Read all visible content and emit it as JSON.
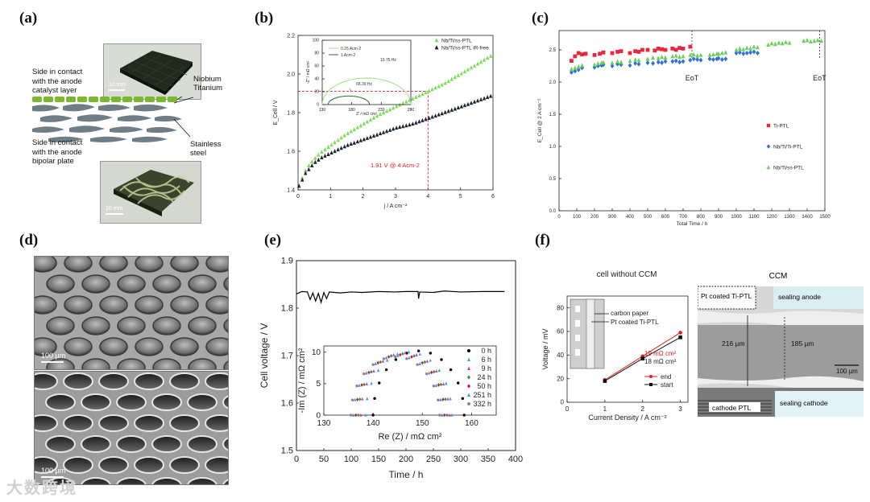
{
  "panels": {
    "a": {
      "label": "(a)",
      "callouts": [
        "Side in contact",
        "with the anode",
        "catalyst layer",
        "Side in contact",
        "with the anode",
        "bipolar plate"
      ],
      "materials": [
        "Niobium",
        "Titanium",
        "Stainless",
        "steel"
      ],
      "scale_bars": [
        "10 mm",
        "10 mm"
      ]
    },
    "b": {
      "label": "(b)",
      "annotation": "1.91 V @ 4 Acm-2",
      "inset_legend": [
        "0.25 Acm-2",
        "1 Acm-2"
      ],
      "inset_freqs": [
        "19.75 Hz",
        "68.39 Hz"
      ]
    },
    "c": {
      "label": "(c)",
      "eot": [
        "EoT",
        "EoT"
      ]
    },
    "d": {
      "label": "(d)",
      "scale_bars": [
        "100 µm",
        "100 µm"
      ]
    },
    "e": {
      "label": "(e)"
    },
    "f": {
      "label": "(f)",
      "left_title": "cell without CCM",
      "right_title": "CCM",
      "diagram_labels": [
        "carbon paper",
        "Pt coated Ti-PTL"
      ],
      "resistances": [
        "19 mΩ cm²",
        "18 mΩ cm²"
      ],
      "micro_labels": [
        "Pt coated Ti-PTL",
        "sealing anode",
        "216 µm",
        "185 µm",
        "100 µm",
        "sealing cathode",
        "cathode PTL"
      ]
    }
  },
  "watermark": "大数跨境",
  "chart_data": [
    {
      "id": "b-main",
      "type": "line",
      "title": "",
      "xlabel": "j / A cm⁻²",
      "ylabel": "E_Cell / V",
      "xlim": [
        0,
        6
      ],
      "ylim": [
        1.4,
        2.2
      ],
      "xticks": [
        0,
        1,
        2,
        3,
        4,
        5,
        6
      ],
      "yticks": [
        1.4,
        1.6,
        1.8,
        2.0,
        2.2
      ],
      "series": [
        {
          "name": "Nb/Ti/ss-PTL",
          "color": "#7ddc5a",
          "x": [
            0.05,
            0.1,
            0.2,
            0.3,
            0.5,
            0.75,
            1.0,
            1.5,
            2.0,
            2.5,
            3.0,
            3.5,
            4.0,
            4.5,
            5.0,
            5.5,
            6.0
          ],
          "y": [
            1.42,
            1.45,
            1.49,
            1.52,
            1.56,
            1.6,
            1.63,
            1.69,
            1.74,
            1.79,
            1.83,
            1.87,
            1.91,
            1.95,
            2.0,
            2.05,
            2.1
          ]
        },
        {
          "name": "Nb/Ti/ss-PTL iR-free",
          "color": "#1a2530",
          "x": [
            0.05,
            0.1,
            0.2,
            0.3,
            0.5,
            0.75,
            1.0,
            1.5,
            2.0,
            2.5,
            3.0,
            3.5,
            4.0,
            4.5,
            5.0,
            5.5,
            6.0
          ],
          "y": [
            1.42,
            1.44,
            1.48,
            1.5,
            1.54,
            1.57,
            1.59,
            1.63,
            1.66,
            1.69,
            1.72,
            1.74,
            1.77,
            1.8,
            1.83,
            1.86,
            1.89
          ]
        }
      ]
    },
    {
      "id": "b-inset",
      "type": "line",
      "xlabel": "Z' / mΩ cm²",
      "ylabel": "-Z'' / mΩ cm²",
      "xlim": [
        130,
        280
      ],
      "ylim": [
        0,
        100
      ],
      "xticks": [
        130,
        180,
        230,
        280
      ],
      "yticks": [
        0,
        20,
        40,
        60,
        80,
        100
      ],
      "series": [
        {
          "name": "0.25 Acm-2",
          "color": "#9de27c",
          "center": 205,
          "radius": 75
        },
        {
          "name": "1 Acm-2",
          "color": "#1f7a1f",
          "center": 175,
          "radius": 35
        }
      ]
    },
    {
      "id": "c",
      "type": "scatter",
      "xlabel": "Total Time / h",
      "ylabel": "E_Cell @ 2 A cm⁻²",
      "xlim": [
        0,
        1500
      ],
      "ylim": [
        0,
        2.8
      ],
      "xticks": [
        0,
        100,
        200,
        300,
        400,
        500,
        600,
        700,
        800,
        900,
        1000,
        1100,
        1200,
        1300,
        1400,
        1500
      ],
      "yticks": [
        0.0,
        0.5,
        1.0,
        1.5,
        2.0,
        2.5
      ],
      "eot_x": [
        750,
        1470
      ],
      "series": [
        {
          "name": "Ti-PTL",
          "color": "#e8283c",
          "marker": "square",
          "x": [
            70,
            90,
            110,
            130,
            150,
            200,
            230,
            250,
            300,
            330,
            350,
            400,
            430,
            450,
            470,
            500,
            540,
            560,
            580,
            600,
            640,
            660,
            680,
            700,
            740
          ],
          "y": [
            2.33,
            2.4,
            2.45,
            2.43,
            2.44,
            2.42,
            2.44,
            2.46,
            2.45,
            2.47,
            2.48,
            2.45,
            2.48,
            2.47,
            2.5,
            2.5,
            2.49,
            2.52,
            2.51,
            2.5,
            2.52,
            2.5,
            2.53,
            2.52,
            2.55
          ]
        },
        {
          "name": "Nb/Ti/Ti-PTL",
          "color": "#2e6fd8",
          "marker": "diamond",
          "x": [
            70,
            90,
            110,
            130,
            200,
            220,
            240,
            250,
            300,
            330,
            350,
            400,
            430,
            450,
            500,
            530,
            560,
            580,
            600,
            640,
            660,
            680,
            700,
            740,
            760,
            780,
            800,
            850,
            870,
            890,
            900,
            920,
            940,
            1000,
            1020,
            1040,
            1060,
            1080,
            1100,
            1120
          ],
          "y": [
            2.15,
            2.17,
            2.19,
            2.22,
            2.23,
            2.25,
            2.26,
            2.27,
            2.25,
            2.28,
            2.27,
            2.26,
            2.29,
            2.28,
            2.3,
            2.29,
            2.31,
            2.3,
            2.32,
            2.32,
            2.33,
            2.31,
            2.32,
            2.34,
            2.36,
            2.35,
            2.34,
            2.36,
            2.35,
            2.36,
            2.37,
            2.35,
            2.36,
            2.45,
            2.46,
            2.44,
            2.45,
            2.46,
            2.47,
            2.45
          ]
        },
        {
          "name": "Nb/Ti/ss-PTL",
          "color": "#6ad05a",
          "marker": "triangle",
          "x": [
            70,
            90,
            110,
            130,
            200,
            220,
            240,
            250,
            300,
            330,
            350,
            400,
            430,
            450,
            500,
            530,
            560,
            580,
            600,
            640,
            660,
            680,
            700,
            740,
            760,
            780,
            800,
            850,
            870,
            890,
            900,
            920,
            940,
            1000,
            1020,
            1040,
            1060,
            1080,
            1100,
            1120,
            1180,
            1200,
            1220,
            1240,
            1260,
            1280,
            1300,
            1380,
            1400,
            1420,
            1440,
            1460,
            1480
          ],
          "y": [
            2.2,
            2.22,
            2.24,
            2.26,
            2.27,
            2.29,
            2.3,
            2.31,
            2.3,
            2.32,
            2.31,
            2.33,
            2.35,
            2.34,
            2.36,
            2.38,
            2.37,
            2.39,
            2.38,
            2.4,
            2.41,
            2.39,
            2.4,
            2.42,
            2.43,
            2.41,
            2.42,
            2.42,
            2.43,
            2.44,
            2.44,
            2.45,
            2.46,
            2.5,
            2.52,
            2.51,
            2.53,
            2.52,
            2.55,
            2.54,
            2.58,
            2.6,
            2.59,
            2.61,
            2.6,
            2.62,
            2.61,
            2.64,
            2.65,
            2.63,
            2.64,
            2.65,
            2.64
          ]
        }
      ]
    },
    {
      "id": "e-main",
      "type": "line",
      "xlabel": "Time / h",
      "ylabel": "Cell voltage / V",
      "xlim": [
        0,
        400
      ],
      "ylim": [
        1.5,
        1.9
      ],
      "xticks": [
        0,
        50,
        100,
        150,
        200,
        250,
        300,
        350,
        400
      ],
      "yticks": [
        1.5,
        1.6,
        1.7,
        1.8,
        1.9
      ],
      "series": [
        {
          "name": "cell voltage",
          "color": "#000000",
          "x": [
            0,
            10,
            20,
            25,
            30,
            35,
            40,
            45,
            50,
            55,
            60,
            80,
            100,
            120,
            150,
            180,
            200,
            222,
            223,
            225,
            250,
            270,
            300,
            340,
            380
          ],
          "y": [
            1.83,
            1.835,
            1.834,
            1.818,
            1.832,
            1.815,
            1.831,
            1.812,
            1.833,
            1.82,
            1.834,
            1.832,
            1.834,
            1.833,
            1.835,
            1.834,
            1.835,
            1.835,
            1.82,
            1.834,
            1.833,
            1.836,
            1.834,
            1.835,
            1.835
          ]
        }
      ]
    },
    {
      "id": "e-inset",
      "type": "scatter",
      "xlabel": "Re (Z) / mΩ cm²",
      "ylabel": "-Im (Z) / mΩ cm²",
      "xlim": [
        130,
        165
      ],
      "ylim": [
        0,
        11
      ],
      "xticks": [
        130,
        140,
        150,
        160
      ],
      "yticks": [
        0,
        5,
        10
      ],
      "series": [
        {
          "name": "0 h",
          "color": "#000000",
          "marker": "circle",
          "start": 140.0,
          "end": 158.5
        },
        {
          "name": "6 h",
          "color": "#3aa0d8",
          "marker": "triangle",
          "start": 138.5,
          "end": 156.0
        },
        {
          "name": "9 h",
          "color": "#d83ad0",
          "marker": "triangle",
          "start": 137.5,
          "end": 155.5
        },
        {
          "name": "24 h",
          "color": "#2a9a3a",
          "marker": "diamond",
          "start": 137.0,
          "end": 155.0
        },
        {
          "name": "50 h",
          "color": "#c21c2c",
          "marker": "diamond",
          "start": 136.5,
          "end": 154.5
        },
        {
          "name": "251 h",
          "color": "#4a90e0",
          "marker": "triangle",
          "start": 136.0,
          "end": 154.0
        },
        {
          "name": "332 h",
          "color": "#888888",
          "marker": "circle",
          "start": 135.5,
          "end": 153.5
        }
      ]
    },
    {
      "id": "f",
      "type": "line",
      "xlabel": "Current Density / A cm⁻²",
      "ylabel": "Voltage / mV",
      "xlim": [
        0,
        3.2
      ],
      "ylim": [
        0,
        90
      ],
      "xticks": [
        0,
        1,
        2,
        3
      ],
      "yticks": [
        0,
        20,
        40,
        60,
        80
      ],
      "series": [
        {
          "name": "end",
          "color": "#e02020",
          "x": [
            1,
            2,
            3
          ],
          "y": [
            19,
            39,
            59
          ]
        },
        {
          "name": "start",
          "color": "#111111",
          "x": [
            1,
            2,
            3
          ],
          "y": [
            18,
            37,
            55
          ]
        }
      ]
    }
  ]
}
